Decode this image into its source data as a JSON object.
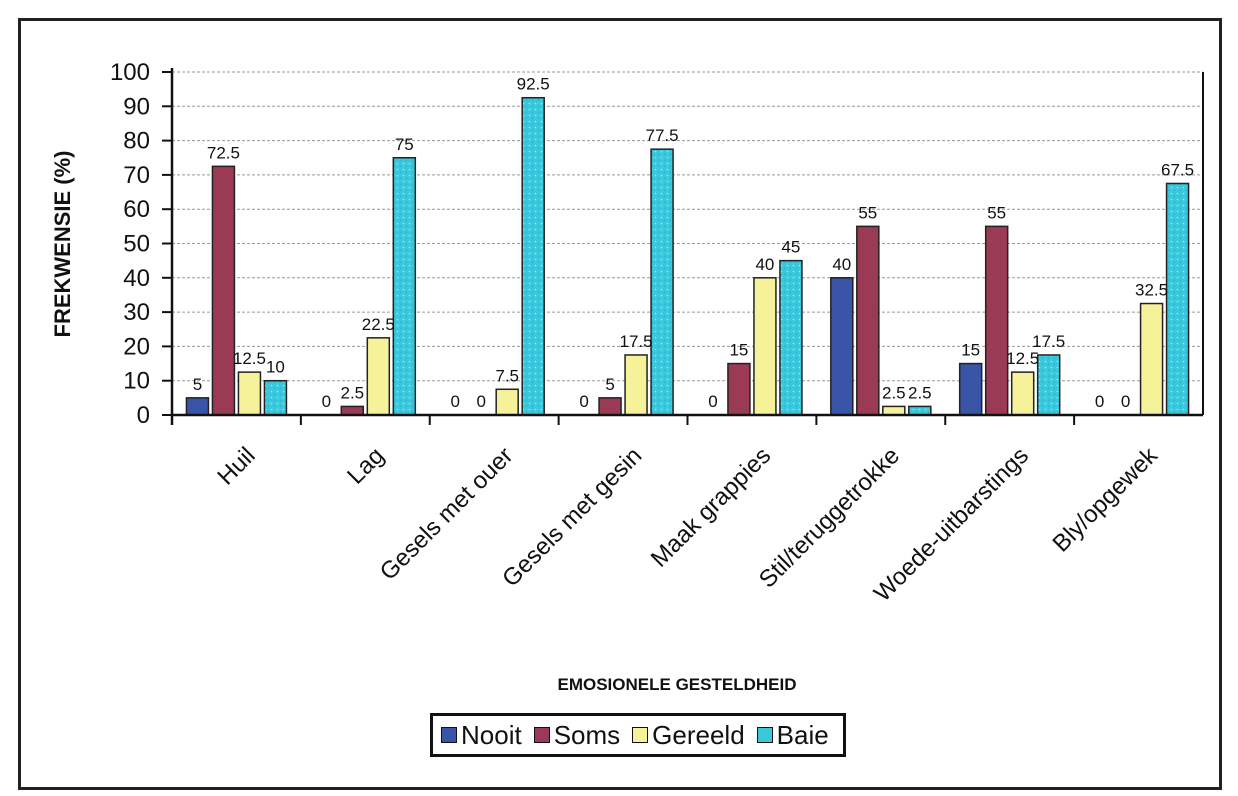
{
  "chart_data": {
    "type": "bar",
    "title": "",
    "xlabel": "EMOSIONELE GESTELDHEID",
    "ylabel": "FREKWENSIE (%)",
    "ylim": [
      0,
      100
    ],
    "yticks": [
      "0",
      "10",
      "20",
      "30",
      "40",
      "50",
      "60",
      "70",
      "80",
      "90",
      "100"
    ],
    "grid": true,
    "legend_position": "bottom",
    "categories": [
      "Huil",
      "Lag",
      "Gesels met ouer",
      "Gesels met gesin",
      "Maak grappies",
      "Stil/teruggetrokke",
      "Woede-uitbarstings",
      "Bly/opgewek"
    ],
    "series": [
      {
        "name": "Nooit",
        "color": "#3a54a8",
        "values": [
          5,
          0,
          0,
          0,
          0,
          40,
          15,
          0
        ],
        "labels": [
          "5",
          "0",
          "0",
          "0",
          "0",
          "40",
          "15",
          "0"
        ]
      },
      {
        "name": "Soms",
        "color": "#9a3a55",
        "values": [
          72.5,
          2.5,
          0,
          5,
          15,
          55,
          55,
          0
        ],
        "labels": [
          "72.5",
          "2.5",
          "0",
          "5",
          "15",
          "55",
          "55",
          "0"
        ]
      },
      {
        "name": "Gereeld",
        "color": "#f6f29a",
        "values": [
          12.5,
          22.5,
          7.5,
          17.5,
          40,
          2.5,
          12.5,
          32.5
        ],
        "labels": [
          "12.5",
          "22.5",
          "7.5",
          "17.5",
          "40",
          "2.5",
          "12.5",
          "32.5"
        ]
      },
      {
        "name": "Baie",
        "color": "#3cc8dc",
        "values": [
          10,
          75,
          92.5,
          77.5,
          45,
          2.5,
          17.5,
          67.5
        ],
        "labels": [
          "10",
          "75",
          "92.5",
          "77.5",
          "45",
          "2.5",
          "17.5",
          "67.5"
        ]
      }
    ]
  }
}
